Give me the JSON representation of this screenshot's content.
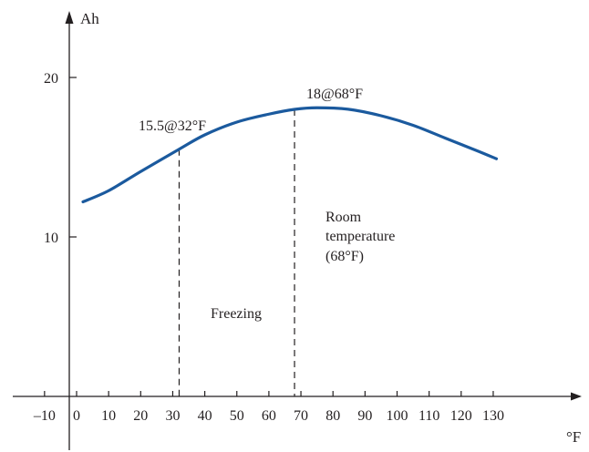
{
  "chart_data": {
    "type": "line",
    "title": "",
    "xlabel": "°F",
    "ylabel": "Ah",
    "xlim": [
      -10,
      130
    ],
    "ylim": [
      0,
      20
    ],
    "x_ticks": [
      -10,
      0,
      10,
      20,
      30,
      40,
      50,
      60,
      70,
      80,
      90,
      100,
      110,
      120,
      130
    ],
    "x_tick_labels": [
      "–10",
      "0",
      "10",
      "20",
      "30",
      "40",
      "50",
      "60",
      "70",
      "80",
      "90",
      "100",
      "110",
      "120",
      "130"
    ],
    "y_ticks": [
      10,
      20
    ],
    "y_tick_labels": [
      "10",
      "20"
    ],
    "grid": false,
    "line_color": "#1b5a9e",
    "series": [
      {
        "x": [
          2,
          10,
          20,
          32,
          40,
          50,
          60,
          68,
          75,
          85,
          95,
          105,
          115,
          125,
          131
        ],
        "y": [
          12.2,
          12.9,
          14.1,
          15.5,
          16.4,
          17.2,
          17.7,
          18.0,
          18.1,
          18.0,
          17.6,
          17.0,
          16.2,
          15.4,
          14.9
        ]
      }
    ],
    "annotations": {
      "point_32": "15.5@32°F",
      "point_68": "18@68°F",
      "freezing": "Freezing",
      "room_1": "Room",
      "room_2": "temperature",
      "room_3": "(68°F)"
    },
    "reference_lines": [
      {
        "x": 32,
        "y": 15.5
      },
      {
        "x": 68,
        "y": 18
      }
    ]
  }
}
